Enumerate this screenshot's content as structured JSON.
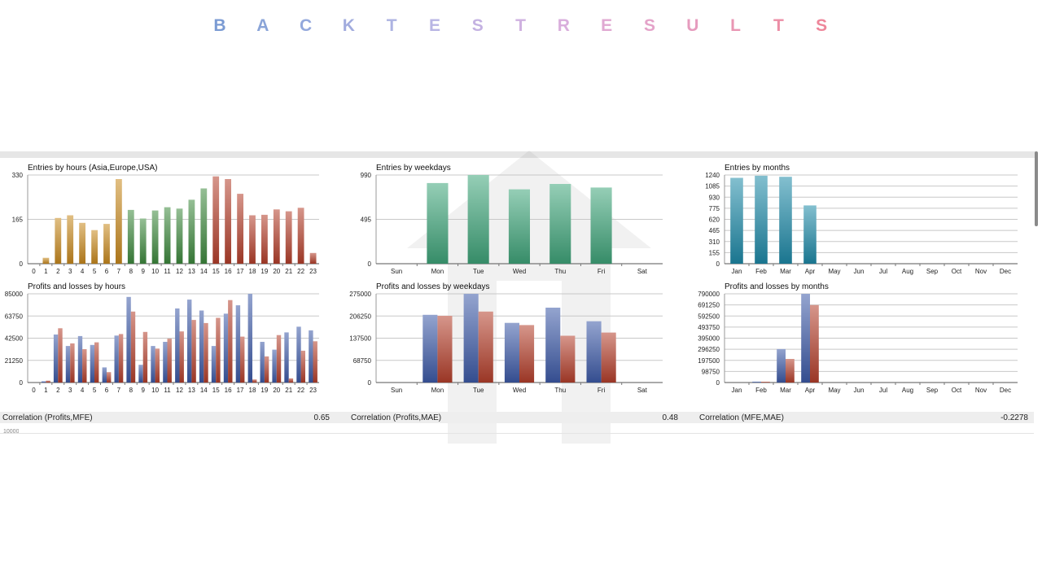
{
  "title": "BACKTESTRESULTS",
  "title_colors": [
    "#7b9bd3",
    "#8aa4d8",
    "#93a8dc",
    "#a2acde",
    "#adb3e2",
    "#b8b5e4",
    "#c4b2e2",
    "#cfb1e0",
    "#d9aedc",
    "#e0a9d2",
    "#e4a3c9",
    "#e69cbe",
    "#e996b3",
    "#ec8ea6",
    "#ee869a"
  ],
  "correlations": [
    {
      "label": "Correlation (Profits,MFE)",
      "value": "0.65"
    },
    {
      "label": "Correlation (Profits,MAE)",
      "value": "0.48"
    },
    {
      "label": "Correlation (MFE,MAE)",
      "value": "-0.2278"
    }
  ],
  "cutoff_text": "10000",
  "chart_data": [
    {
      "id": "entries-hours",
      "type": "bar",
      "title": "Entries by hours (Asia,Europe,USA)",
      "categories": [
        "0",
        "1",
        "2",
        "3",
        "4",
        "5",
        "6",
        "7",
        "8",
        "9",
        "10",
        "11",
        "12",
        "13",
        "14",
        "15",
        "16",
        "17",
        "18",
        "19",
        "20",
        "21",
        "22",
        "23"
      ],
      "y_ticks": [
        "0",
        "165",
        "330"
      ],
      "ylim": [
        0,
        330
      ],
      "series": [
        {
          "values": [
            0,
            22,
            170,
            180,
            152,
            125,
            148,
            315,
            200,
            168,
            198,
            210,
            205,
            238,
            280,
            325,
            315,
            260,
            180,
            182,
            202,
            195,
            208,
            40
          ]
        }
      ],
      "colors": {
        "asia": "#c98a1e",
        "europe": "#3e8a3e",
        "usa": "#b5402c"
      },
      "groups": [
        "asia",
        "asia",
        "asia",
        "asia",
        "asia",
        "asia",
        "asia",
        "asia",
        "europe",
        "europe",
        "europe",
        "europe",
        "europe",
        "europe",
        "europe",
        "usa",
        "usa",
        "usa",
        "usa",
        "usa",
        "usa",
        "usa",
        "usa",
        "usa"
      ]
    },
    {
      "id": "entries-weekdays",
      "type": "bar",
      "title": "Entries by weekdays",
      "categories": [
        "Sun",
        "Mon",
        "Tue",
        "Wed",
        "Thu",
        "Fri",
        "Sat"
      ],
      "y_ticks": [
        "0",
        "495",
        "990"
      ],
      "ylim": [
        0,
        990
      ],
      "series": [
        {
          "values": [
            0,
            900,
            990,
            830,
            890,
            850,
            0
          ]
        }
      ],
      "color": "#3fa57a"
    },
    {
      "id": "entries-months",
      "type": "bar",
      "title": "Entries by months",
      "categories": [
        "Jan",
        "Feb",
        "Mar",
        "Apr",
        "May",
        "Jun",
        "Jul",
        "Aug",
        "Sep",
        "Oct",
        "Nov",
        "Dec"
      ],
      "y_ticks": [
        "0",
        "155",
        "310",
        "465",
        "620",
        "775",
        "930",
        "1085",
        "1240"
      ],
      "ylim": [
        0,
        1240
      ],
      "series": [
        {
          "values": [
            1200,
            1230,
            1215,
            815,
            0,
            0,
            0,
            0,
            0,
            0,
            0,
            0
          ]
        }
      ],
      "color": "#1e8aa8"
    },
    {
      "id": "pl-hours",
      "type": "bar",
      "title": "Profits and losses by hours",
      "categories": [
        "0",
        "1",
        "2",
        "3",
        "4",
        "5",
        "6",
        "7",
        "8",
        "9",
        "10",
        "11",
        "12",
        "13",
        "14",
        "15",
        "16",
        "17",
        "18",
        "19",
        "20",
        "21",
        "22",
        "23"
      ],
      "y_ticks": [
        "0",
        "21250",
        "42500",
        "63750",
        "85000"
      ],
      "ylim": [
        0,
        85000
      ],
      "series": [
        {
          "name": "profits",
          "values": [
            0,
            1200,
            46000,
            35000,
            44500,
            36000,
            14500,
            45000,
            82000,
            17000,
            35000,
            39000,
            71000,
            79500,
            69000,
            35000,
            66000,
            74000,
            85000,
            39000,
            31500,
            48000,
            53500,
            50000
          ]
        },
        {
          "name": "losses",
          "values": [
            0,
            1800,
            52000,
            37500,
            32000,
            38500,
            10000,
            46500,
            68000,
            48500,
            32500,
            42000,
            49000,
            60000,
            57000,
            62000,
            79000,
            44000,
            3000,
            25000,
            45500,
            4000,
            30500,
            39500
          ]
        }
      ],
      "colors": {
        "profits": "#3d5aa8",
        "losses": "#b5402c"
      }
    },
    {
      "id": "pl-weekdays",
      "type": "bar",
      "title": "Profits and losses by weekdays",
      "categories": [
        "Sun",
        "Mon",
        "Tue",
        "Wed",
        "Thu",
        "Fri",
        "Sat"
      ],
      "y_ticks": [
        "0",
        "68750",
        "137500",
        "206250",
        "275000"
      ],
      "ylim": [
        0,
        275000
      ],
      "series": [
        {
          "name": "profits",
          "values": [
            0,
            210000,
            275000,
            185000,
            232000,
            190000,
            0
          ]
        },
        {
          "name": "losses",
          "values": [
            0,
            207000,
            220000,
            178000,
            145000,
            155000,
            0
          ]
        }
      ],
      "colors": {
        "profits": "#3d5aa8",
        "losses": "#b5402c"
      }
    },
    {
      "id": "pl-months",
      "type": "bar",
      "title": "Profits and losses by months",
      "categories": [
        "Jan",
        "Feb",
        "Mar",
        "Apr",
        "May",
        "Jun",
        "Jul",
        "Aug",
        "Sep",
        "Oct",
        "Nov",
        "Dec"
      ],
      "y_ticks": [
        "0",
        "98750",
        "197500",
        "296250",
        "395000",
        "493750",
        "592500",
        "691250",
        "790000"
      ],
      "ylim": [
        0,
        790000
      ],
      "series": [
        {
          "name": "profits",
          "values": [
            0,
            8000,
            298000,
            790000,
            0,
            0,
            0,
            0,
            0,
            0,
            0,
            0
          ]
        },
        {
          "name": "losses",
          "values": [
            0,
            6000,
            210000,
            690000,
            0,
            0,
            0,
            0,
            0,
            0,
            0,
            0
          ]
        }
      ],
      "colors": {
        "profits": "#3d5aa8",
        "losses": "#b5402c"
      }
    }
  ]
}
